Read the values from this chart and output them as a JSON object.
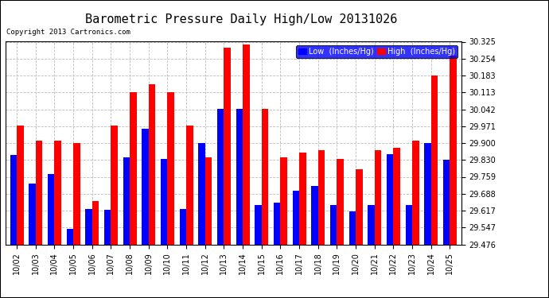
{
  "title": "Barometric Pressure Daily High/Low 20131026",
  "copyright": "Copyright 2013 Cartronics.com",
  "legend_low": "Low  (Inches/Hg)",
  "legend_high": "High  (Inches/Hg)",
  "dates": [
    "10/02",
    "10/03",
    "10/04",
    "10/05",
    "10/06",
    "10/07",
    "10/08",
    "10/09",
    "10/10",
    "10/11",
    "10/12",
    "10/13",
    "10/14",
    "10/15",
    "10/16",
    "10/17",
    "10/18",
    "10/19",
    "10/20",
    "10/21",
    "10/22",
    "10/23",
    "10/24",
    "10/25"
  ],
  "low": [
    29.852,
    29.73,
    29.77,
    29.54,
    29.625,
    29.62,
    29.84,
    29.96,
    29.835,
    29.625,
    29.9,
    30.042,
    30.042,
    29.64,
    29.65,
    29.7,
    29.72,
    29.64,
    29.615,
    29.64,
    29.855,
    29.64,
    29.9,
    29.83
  ],
  "high": [
    29.975,
    29.91,
    29.91,
    29.9,
    29.658,
    29.975,
    30.113,
    30.148,
    30.113,
    29.975,
    29.84,
    30.3,
    30.315,
    30.042,
    29.84,
    29.86,
    29.87,
    29.835,
    29.792,
    29.87,
    29.88,
    29.91,
    30.183,
    30.268
  ],
  "ylim_min": 29.476,
  "ylim_max": 30.325,
  "yticks": [
    29.476,
    29.547,
    29.617,
    29.688,
    29.759,
    29.83,
    29.9,
    29.971,
    30.042,
    30.113,
    30.183,
    30.254,
    30.325
  ],
  "low_color": "#0000ff",
  "high_color": "#ff0000",
  "bg_color": "#ffffff",
  "grid_color": "#bbbbbb",
  "title_fontsize": 11,
  "tick_fontsize": 7,
  "bar_width": 0.36
}
